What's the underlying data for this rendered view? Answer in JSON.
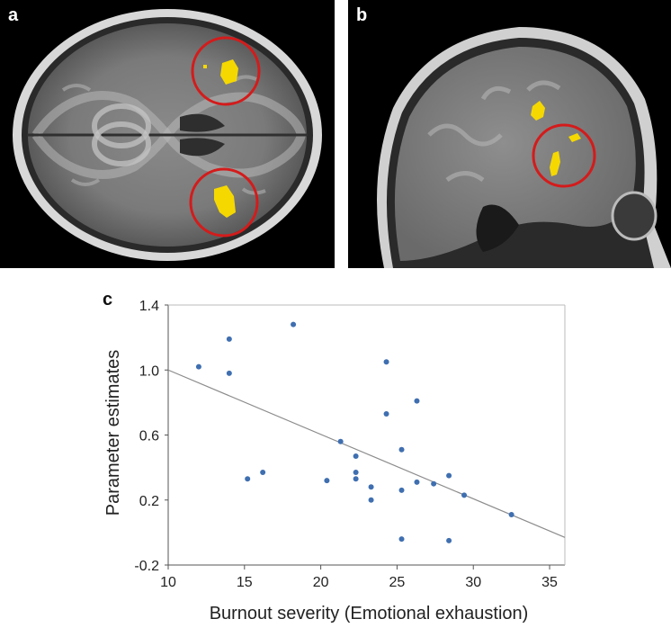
{
  "panels": {
    "a": {
      "letter": "a"
    },
    "b": {
      "letter": "b"
    },
    "c": {
      "letter": "c"
    }
  },
  "colors": {
    "activation": "#f5d800",
    "circle": "#d41b1b",
    "points": "#3f6fb0",
    "trend": "#8c8c8c"
  },
  "chart_data": {
    "type": "scatter",
    "xlabel": "Burnout severity (Emotional exhaustion)",
    "ylabel": "Parameter estimates",
    "xlim": [
      10,
      36
    ],
    "ylim": [
      -0.2,
      1.4
    ],
    "xticks": [
      10,
      15,
      20,
      25,
      30,
      35
    ],
    "yticks": [
      -0.2,
      0.2,
      0.6,
      1.0,
      1.4
    ],
    "ytick_labels": [
      "-0.2",
      "0.2",
      "0.6",
      "1.0",
      "1.4"
    ],
    "xtick_labels": [
      "10",
      "15",
      "20",
      "25",
      "30",
      "35"
    ],
    "grid": false,
    "points": [
      {
        "x": 12,
        "y": 1.02
      },
      {
        "x": 14,
        "y": 1.19
      },
      {
        "x": 14,
        "y": 0.98
      },
      {
        "x": 15.2,
        "y": 0.33
      },
      {
        "x": 16.2,
        "y": 0.37
      },
      {
        "x": 18.2,
        "y": 1.28
      },
      {
        "x": 20.4,
        "y": 0.32
      },
      {
        "x": 21.3,
        "y": 0.56
      },
      {
        "x": 22.3,
        "y": 0.47
      },
      {
        "x": 22.3,
        "y": 0.37
      },
      {
        "x": 22.3,
        "y": 0.33
      },
      {
        "x": 23.3,
        "y": 0.28
      },
      {
        "x": 23.3,
        "y": 0.2
      },
      {
        "x": 24.3,
        "y": 1.05
      },
      {
        "x": 24.3,
        "y": 0.73
      },
      {
        "x": 25.3,
        "y": 0.51
      },
      {
        "x": 25.3,
        "y": 0.26
      },
      {
        "x": 25.3,
        "y": -0.04
      },
      {
        "x": 26.3,
        "y": 0.81
      },
      {
        "x": 26.3,
        "y": 0.31
      },
      {
        "x": 27.4,
        "y": 0.3
      },
      {
        "x": 28.4,
        "y": 0.35
      },
      {
        "x": 28.4,
        "y": -0.05
      },
      {
        "x": 29.4,
        "y": 0.23
      },
      {
        "x": 32.5,
        "y": 0.11
      }
    ],
    "trendline": {
      "x": [
        10,
        36
      ],
      "y": [
        1.0,
        -0.03
      ]
    }
  }
}
